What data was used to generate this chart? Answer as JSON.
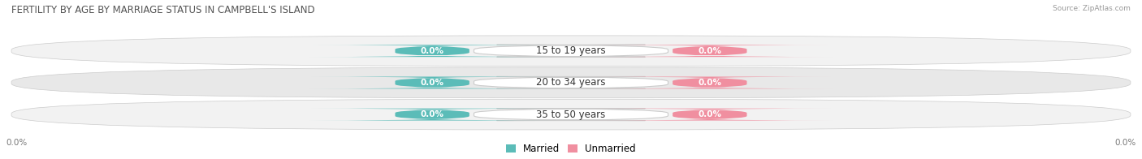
{
  "title": "FERTILITY BY AGE BY MARRIAGE STATUS IN CAMPBELL'S ISLAND",
  "source": "Source: ZipAtlas.com",
  "categories": [
    "15 to 19 years",
    "20 to 34 years",
    "35 to 50 years"
  ],
  "married_values": [
    0.0,
    0.0,
    0.0
  ],
  "unmarried_values": [
    0.0,
    0.0,
    0.0
  ],
  "married_color": "#5bbcb8",
  "unmarried_color": "#f08fa0",
  "row_bg_light": "#f2f2f2",
  "row_bg_dark": "#e8e8e8",
  "pill_bg": "#e0e0e0",
  "title_fontsize": 8.5,
  "source_fontsize": 6.5,
  "label_fontsize": 8.5,
  "value_fontsize": 7.5,
  "axis_label": "0.0%",
  "background_color": "#ffffff",
  "legend_married": "Married",
  "legend_unmarried": "Unmarried"
}
